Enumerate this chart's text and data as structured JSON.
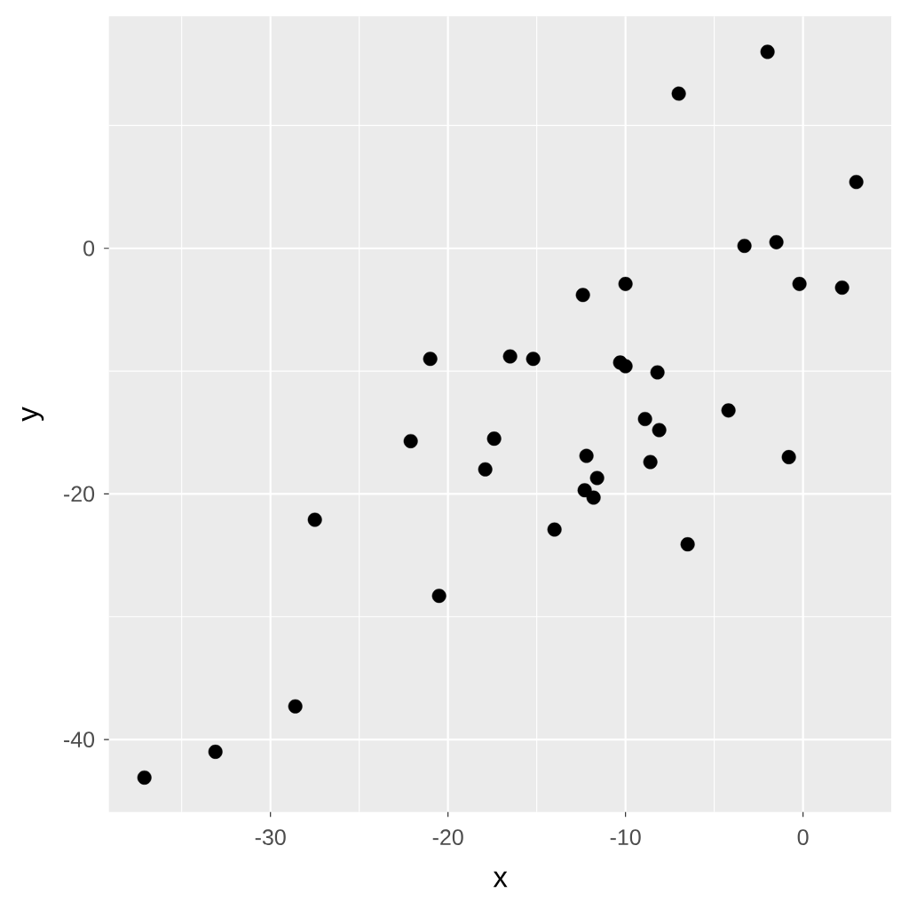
{
  "chart_data": {
    "type": "scatter",
    "xlabel": "x",
    "ylabel": "y",
    "x": [
      -37.1,
      -33.1,
      -28.6,
      -27.5,
      -22.1,
      -21.0,
      -20.5,
      -17.9,
      -17.4,
      -16.5,
      -15.2,
      -14.0,
      -12.4,
      -12.3,
      -12.2,
      -11.8,
      -11.6,
      -10.3,
      -10.0,
      -10.0,
      -8.9,
      -8.6,
      -8.2,
      -8.1,
      -7.0,
      -6.5,
      -4.2,
      -3.3,
      -2.0,
      -1.5,
      -0.8,
      -0.2,
      2.2,
      3.0
    ],
    "values": [
      -43.1,
      -41.0,
      -37.3,
      -22.1,
      -15.7,
      -9.0,
      -28.3,
      -18.0,
      -15.5,
      -8.8,
      -9.0,
      -22.9,
      -3.8,
      -19.7,
      -16.9,
      -20.3,
      -18.7,
      -9.3,
      -9.6,
      -2.9,
      -13.9,
      -17.4,
      -10.1,
      -14.8,
      12.6,
      -24.1,
      -13.2,
      0.2,
      16.0,
      0.5,
      -17.0,
      -2.9,
      -3.2,
      5.4
    ],
    "color": "#000000",
    "marker": "circle",
    "xlim": [
      -39.1,
      5.0
    ],
    "ylim": [
      -45.9,
      18.9
    ],
    "xticks": [
      -30,
      -20,
      -10,
      0
    ],
    "yticks": [
      -40,
      -20,
      0
    ],
    "grid": true
  }
}
